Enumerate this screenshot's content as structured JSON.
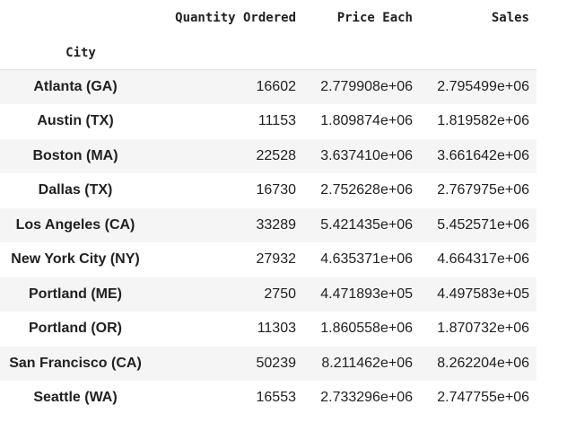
{
  "table": {
    "columns": [
      "Quantity Ordered",
      "Price Each",
      "Sales"
    ],
    "index_name": "City",
    "rows": [
      {
        "city": "Atlanta (GA)",
        "quantity": "16602",
        "price": "2.779908e+06",
        "sales": "2.795499e+06"
      },
      {
        "city": "Austin (TX)",
        "quantity": "11153",
        "price": "1.809874e+06",
        "sales": "1.819582e+06"
      },
      {
        "city": "Boston (MA)",
        "quantity": "22528",
        "price": "3.637410e+06",
        "sales": "3.661642e+06"
      },
      {
        "city": "Dallas (TX)",
        "quantity": "16730",
        "price": "2.752628e+06",
        "sales": "2.767975e+06"
      },
      {
        "city": "Los Angeles (CA)",
        "quantity": "33289",
        "price": "5.421435e+06",
        "sales": "5.452571e+06"
      },
      {
        "city": "New York City (NY)",
        "quantity": "27932",
        "price": "4.635371e+06",
        "sales": "4.664317e+06"
      },
      {
        "city": "Portland (ME)",
        "quantity": "2750",
        "price": "4.471893e+05",
        "sales": "4.497583e+05"
      },
      {
        "city": "Portland (OR)",
        "quantity": "11303",
        "price": "1.860558e+06",
        "sales": "1.870732e+06"
      },
      {
        "city": "San Francisco (CA)",
        "quantity": "50239",
        "price": "8.211462e+06",
        "sales": "8.262204e+06"
      },
      {
        "city": "Seattle (WA)",
        "quantity": "16553",
        "price": "2.733296e+06",
        "sales": "2.747755e+06"
      }
    ]
  },
  "colors": {
    "text": "#212121",
    "stripe": "#f5f5f5",
    "divider": "#e0e0e0"
  }
}
